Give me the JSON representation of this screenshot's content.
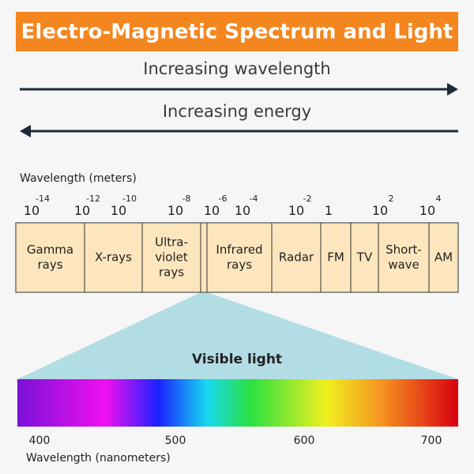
{
  "title": "Electro-Magnetic Spectrum and Light",
  "arrows": {
    "wavelength": "Increasing wavelength",
    "energy": "Increasing energy"
  },
  "wavelength_axis": {
    "label": "Wavelength (meters)",
    "ticks": [
      {
        "base": "10",
        "exponent": "-14"
      },
      {
        "base": "10",
        "exponent": "-12"
      },
      {
        "base": "10",
        "exponent": "-10"
      },
      {
        "base": "10",
        "exponent": "-8"
      },
      {
        "base": "10",
        "exponent": "-6"
      },
      {
        "base": "10",
        "exponent": "-4"
      },
      {
        "base": "10",
        "exponent": "-2"
      },
      {
        "base": "1"
      },
      {
        "base": "10",
        "exponent": "2"
      },
      {
        "base": "10",
        "exponent": "4"
      }
    ]
  },
  "bands": [
    {
      "lines": [
        "Gamma",
        "rays"
      ]
    },
    {
      "lines": [
        "X-rays"
      ]
    },
    {
      "lines": [
        "Ultra-",
        "violet",
        "rays"
      ]
    },
    {
      "lines": []
    },
    {
      "lines": [
        "Infrared",
        "rays"
      ]
    },
    {
      "lines": [
        "Radar"
      ]
    },
    {
      "lines": [
        "FM"
      ]
    },
    {
      "lines": [
        "TV"
      ]
    },
    {
      "lines": [
        "Short-",
        "wave"
      ]
    },
    {
      "lines": [
        "AM"
      ]
    }
  ],
  "visible": {
    "label": "Visible light",
    "axis": {
      "label": "Wavelength (nanometers)",
      "ticks": [
        "400",
        "500",
        "600",
        "700"
      ]
    }
  }
}
